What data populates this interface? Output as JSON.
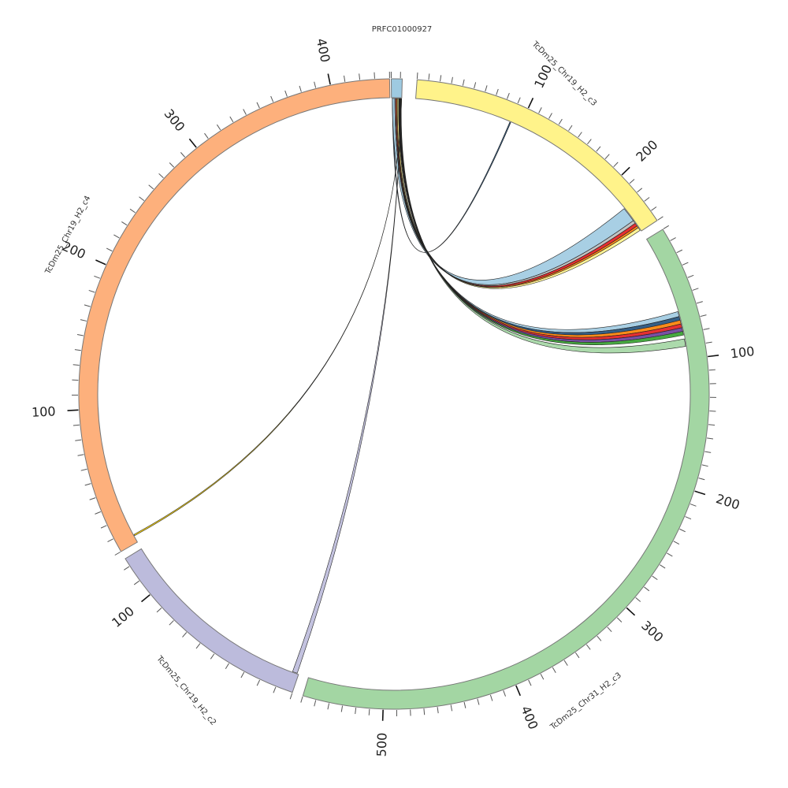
{
  "chart_data": {
    "type": "chord",
    "segments": [
      {
        "id": "prfc",
        "name": "PRFC01000927",
        "length": 12,
        "color": "#9ecae1",
        "major_ticks": []
      },
      {
        "id": "c3",
        "name": "TcDm25_Chr19_H2_c3",
        "length": 250,
        "color": "#fff38a",
        "major_ticks": [
          100,
          200
        ]
      },
      {
        "id": "c31",
        "name": "TcDm25_Chr31_H2_c3",
        "length": 560,
        "color": "#a3d6a3",
        "major_ticks": [
          100,
          200,
          300,
          400,
          500
        ]
      },
      {
        "id": "c2",
        "name": "TcDm25_Chr19_H2_c2",
        "length": 125,
        "color": "#bcbbdc",
        "major_ticks": [
          100
        ]
      },
      {
        "id": "c4",
        "name": "TcDm25_Chr19_H2_c4",
        "length": 440,
        "color": "#fdb07c",
        "major_ticks": [
          100,
          200,
          300,
          400
        ]
      }
    ],
    "links": [
      {
        "from": "prfc",
        "from_pos": [
          1.0,
          2.0
        ],
        "to": "c3",
        "to_pos": [
          90,
          91
        ],
        "color": "#1f4e79"
      },
      {
        "from": "prfc",
        "from_pos": [
          1.0,
          4.0
        ],
        "to": "c3",
        "to_pos": [
          224,
          238
        ],
        "color": "#9ecae1"
      },
      {
        "from": "prfc",
        "from_pos": [
          4.0,
          5.0
        ],
        "to": "c3",
        "to_pos": [
          238,
          241
        ],
        "color": "#bbbbbb"
      },
      {
        "from": "prfc",
        "from_pos": [
          5.0,
          6.0
        ],
        "to": "c3",
        "to_pos": [
          241,
          244
        ],
        "color": "#e31a1c"
      },
      {
        "from": "prfc",
        "from_pos": [
          6.0,
          7.0
        ],
        "to": "c3",
        "to_pos": [
          244,
          246
        ],
        "color": "#ff7f00"
      },
      {
        "from": "prfc",
        "from_pos": [
          7.0,
          8.5
        ],
        "to": "c3",
        "to_pos": [
          246,
          249
        ],
        "color": "#fff38a"
      },
      {
        "from": "prfc",
        "from_pos": [
          8.5,
          9.0
        ],
        "to": "c31",
        "to_pos": [
          62,
          66
        ],
        "color": "#9ecae1"
      },
      {
        "from": "prfc",
        "from_pos": [
          9.0,
          9.5
        ],
        "to": "c31",
        "to_pos": [
          66,
          69
        ],
        "color": "#1f4e79"
      },
      {
        "from": "prfc",
        "from_pos": [
          9.5,
          10.0
        ],
        "to": "c31",
        "to_pos": [
          69,
          72
        ],
        "color": "#ff7f00"
      },
      {
        "from": "prfc",
        "from_pos": [
          10.0,
          10.4
        ],
        "to": "c31",
        "to_pos": [
          72,
          75
        ],
        "color": "#e31a1c"
      },
      {
        "from": "prfc",
        "from_pos": [
          10.4,
          10.8
        ],
        "to": "c31",
        "to_pos": [
          75,
          78
        ],
        "color": "#6a3d9a"
      },
      {
        "from": "prfc",
        "from_pos": [
          10.8,
          11.2
        ],
        "to": "c31",
        "to_pos": [
          78,
          81
        ],
        "color": "#33a02c"
      },
      {
        "from": "prfc",
        "from_pos": [
          11.2,
          11.6
        ],
        "to": "c31",
        "to_pos": [
          84,
          90
        ],
        "color": "#a3d6a3"
      },
      {
        "from": "prfc",
        "from_pos": [
          11.6,
          11.8
        ],
        "to": "c2",
        "to_pos": [
          1,
          4
        ],
        "color": "#bcbbdc"
      },
      {
        "from": "prfc",
        "from_pos": [
          11.8,
          11.9
        ],
        "to": "c4",
        "to_pos": [
          5,
          6
        ],
        "color": "#ffd700"
      }
    ]
  }
}
